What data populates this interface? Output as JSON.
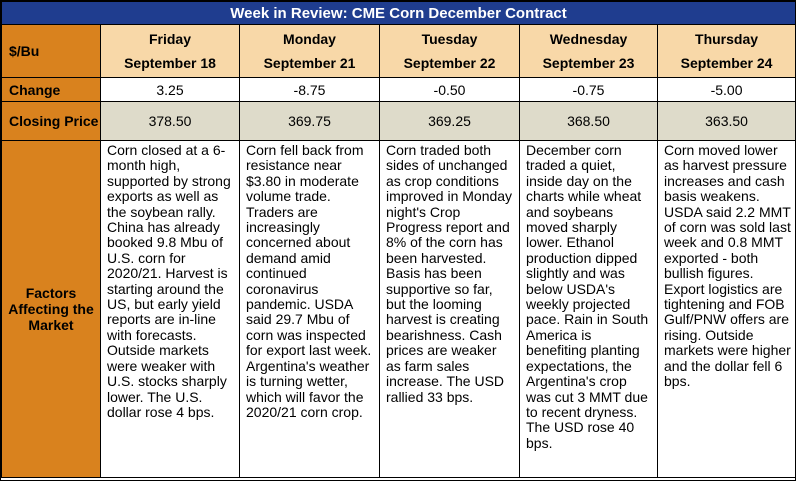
{
  "title": "Week in Review: CME Corn December Contract",
  "unit_label": "$/Bu",
  "row_labels": {
    "change": "Change",
    "closing": "Closing Price",
    "factors": "Factors Affecting the Market"
  },
  "days": [
    {
      "day": "Friday",
      "date": "September 18",
      "change": "3.25",
      "closing": "378.50",
      "factors": "Corn closed at a 6-month high, supported by strong exports as well as the soybean rally. China has already booked 9.8 Mbu of U.S. corn for 2020/21. Harvest is starting around the US, but early yield reports are in-line with forecasts. Outside markets were weaker with U.S. stocks sharply lower. The U.S. dollar rose 4 bps."
    },
    {
      "day": "Monday",
      "date": "September 21",
      "change": "-8.75",
      "closing": "369.75",
      "factors": "Corn fell back from resistance near $3.80 in moderate volume trade. Traders are increasingly concerned about demand amid continued coronavirus pandemic. USDA said 29.7 Mbu of corn was inspected for export last week. Argentina's weather is turning wetter, which will favor the 2020/21 corn crop."
    },
    {
      "day": "Tuesday",
      "date": "September 22",
      "change": "-0.50",
      "closing": "369.25",
      "factors": "Corn traded both sides of unchanged as crop conditions improved in Monday night's Crop Progress report and 8% of the corn has been harvested. Basis has been supportive so far, but the looming harvest is creating bearishness. Cash prices are weaker as farm sales increase. The USD rallied 33 bps."
    },
    {
      "day": "Wednesday",
      "date": "September 23",
      "change": "-0.75",
      "closing": "368.50",
      "factors": "December corn traded a quiet, inside day on the charts while wheat and soybeans moved sharply lower. Ethanol production dipped slightly and was below USDA's weekly projected pace. Rain in South America is benefiting planting expectations, the Argentina's crop was cut 3 MMT due to recent dryness. The USD rose 40 bps."
    },
    {
      "day": "Thursday",
      "date": "September 24",
      "change": "-5.00",
      "closing": "363.50",
      "factors": "Corn moved lower as harvest pressure increases and cash basis weakens. USDA said 2.2 MMT of corn was sold last week and 0.8 MMT exported - both bullish figures. Export logistics are tightening and FOB Gulf/PNW offers are rising. Outside markets were higher and the dollar fell 6 bps."
    }
  ]
}
